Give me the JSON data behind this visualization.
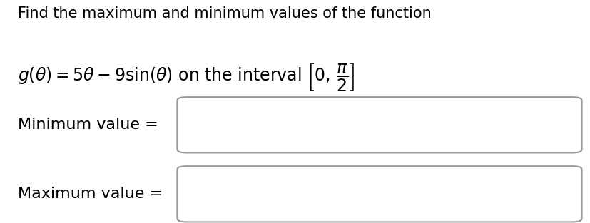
{
  "title_line1": "Find the maximum and minimum values of the function",
  "label_min": "Minimum value =",
  "label_max": "Maximum value =",
  "background_color": "#ffffff",
  "text_color": "#000000",
  "box_edge_color": "#999999",
  "title_fontsize": 15,
  "formula_fontsize": 17,
  "label_fontsize": 16,
  "fig_width": 8.28,
  "fig_height": 3.13,
  "dpi": 100
}
